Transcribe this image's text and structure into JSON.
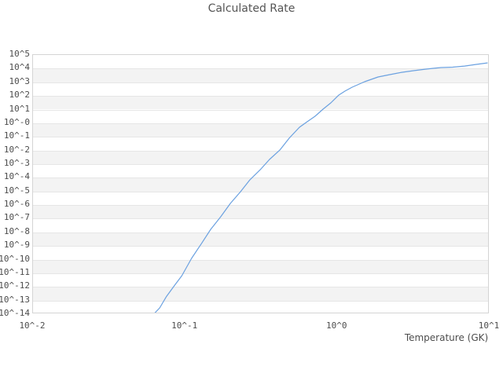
{
  "title": "Calculated Rate",
  "axes": {
    "x": {
      "label": "Temperature (GK)",
      "scale": "log",
      "ticks": [
        {
          "label": "10^-2",
          "exp": -2
        },
        {
          "label": "10^-1",
          "exp": -1
        },
        {
          "label": "10^0",
          "exp": 0
        },
        {
          "label": "10^1",
          "exp": 1
        }
      ]
    },
    "y": {
      "label": "",
      "scale": "log",
      "ticks": [
        {
          "label": "10^5",
          "exp": 5
        },
        {
          "label": "10^4",
          "exp": 4
        },
        {
          "label": "10^3",
          "exp": 3
        },
        {
          "label": "10^2",
          "exp": 2
        },
        {
          "label": "10^1",
          "exp": 1
        },
        {
          "label": "10^-0",
          "exp": 0
        },
        {
          "label": "10^-1",
          "exp": -1
        },
        {
          "label": "10^-2",
          "exp": -2
        },
        {
          "label": "10^-3",
          "exp": -3
        },
        {
          "label": "10^-4",
          "exp": -4
        },
        {
          "label": "10^-5",
          "exp": -5
        },
        {
          "label": "10^-6",
          "exp": -6
        },
        {
          "label": "10^-7",
          "exp": -7
        },
        {
          "label": "10^-8",
          "exp": -8
        },
        {
          "label": "10^-9",
          "exp": -9
        },
        {
          "label": "10^-10",
          "exp": -10
        },
        {
          "label": "10^-11",
          "exp": -11
        },
        {
          "label": "10^-12",
          "exp": -12
        },
        {
          "label": "10^-13",
          "exp": -13
        },
        {
          "label": "10^-14",
          "exp": -14
        }
      ]
    }
  },
  "chart_data": {
    "type": "line",
    "title": "Calculated Rate",
    "xlabel": "Temperature (GK)",
    "ylabel": "",
    "x_scale": "log",
    "y_scale": "log",
    "xlim": [
      0.01,
      10
    ],
    "ylim": [
      1e-14,
      100000.0
    ],
    "grid": "horizontal-alternating-bands",
    "legend": "none",
    "point_format": [
      "temperature_GK",
      "log10_rate"
    ],
    "series": [
      {
        "name": "Calculated Rate",
        "color": "#6ba1e0",
        "points": [
          [
            0.062,
            -14.0
          ],
          [
            0.068,
            -13.54
          ],
          [
            0.075,
            -12.73
          ],
          [
            0.085,
            -11.9
          ],
          [
            0.095,
            -11.18
          ],
          [
            0.11,
            -9.91
          ],
          [
            0.127,
            -8.87
          ],
          [
            0.147,
            -7.78
          ],
          [
            0.171,
            -6.86
          ],
          [
            0.198,
            -5.88
          ],
          [
            0.231,
            -5.02
          ],
          [
            0.266,
            -4.15
          ],
          [
            0.311,
            -3.41
          ],
          [
            0.358,
            -2.66
          ],
          [
            0.418,
            -1.97
          ],
          [
            0.482,
            -1.1
          ],
          [
            0.562,
            -0.3
          ],
          [
            0.634,
            0.11
          ],
          [
            0.713,
            0.51
          ],
          [
            0.804,
            1.03
          ],
          [
            0.905,
            1.49
          ],
          [
            1.02,
            2.06
          ],
          [
            1.12,
            2.35
          ],
          [
            1.25,
            2.64
          ],
          [
            1.51,
            3.04
          ],
          [
            1.85,
            3.39
          ],
          [
            2.21,
            3.56
          ],
          [
            2.64,
            3.73
          ],
          [
            3.16,
            3.85
          ],
          [
            3.77,
            3.96
          ],
          [
            4.25,
            4.02
          ],
          [
            4.79,
            4.08
          ],
          [
            5.72,
            4.11
          ],
          [
            6.84,
            4.19
          ],
          [
            8.17,
            4.31
          ],
          [
            9.65,
            4.42
          ]
        ]
      }
    ]
  },
  "style": {
    "band_color": "#f3f3f3",
    "grid_color": "#e6e6e6",
    "border_color": "#d4d4d4",
    "tick_text_color": "#4d4d4d",
    "title_color": "#555555",
    "background": "#ffffff",
    "line_color": "#6ba1e0"
  }
}
